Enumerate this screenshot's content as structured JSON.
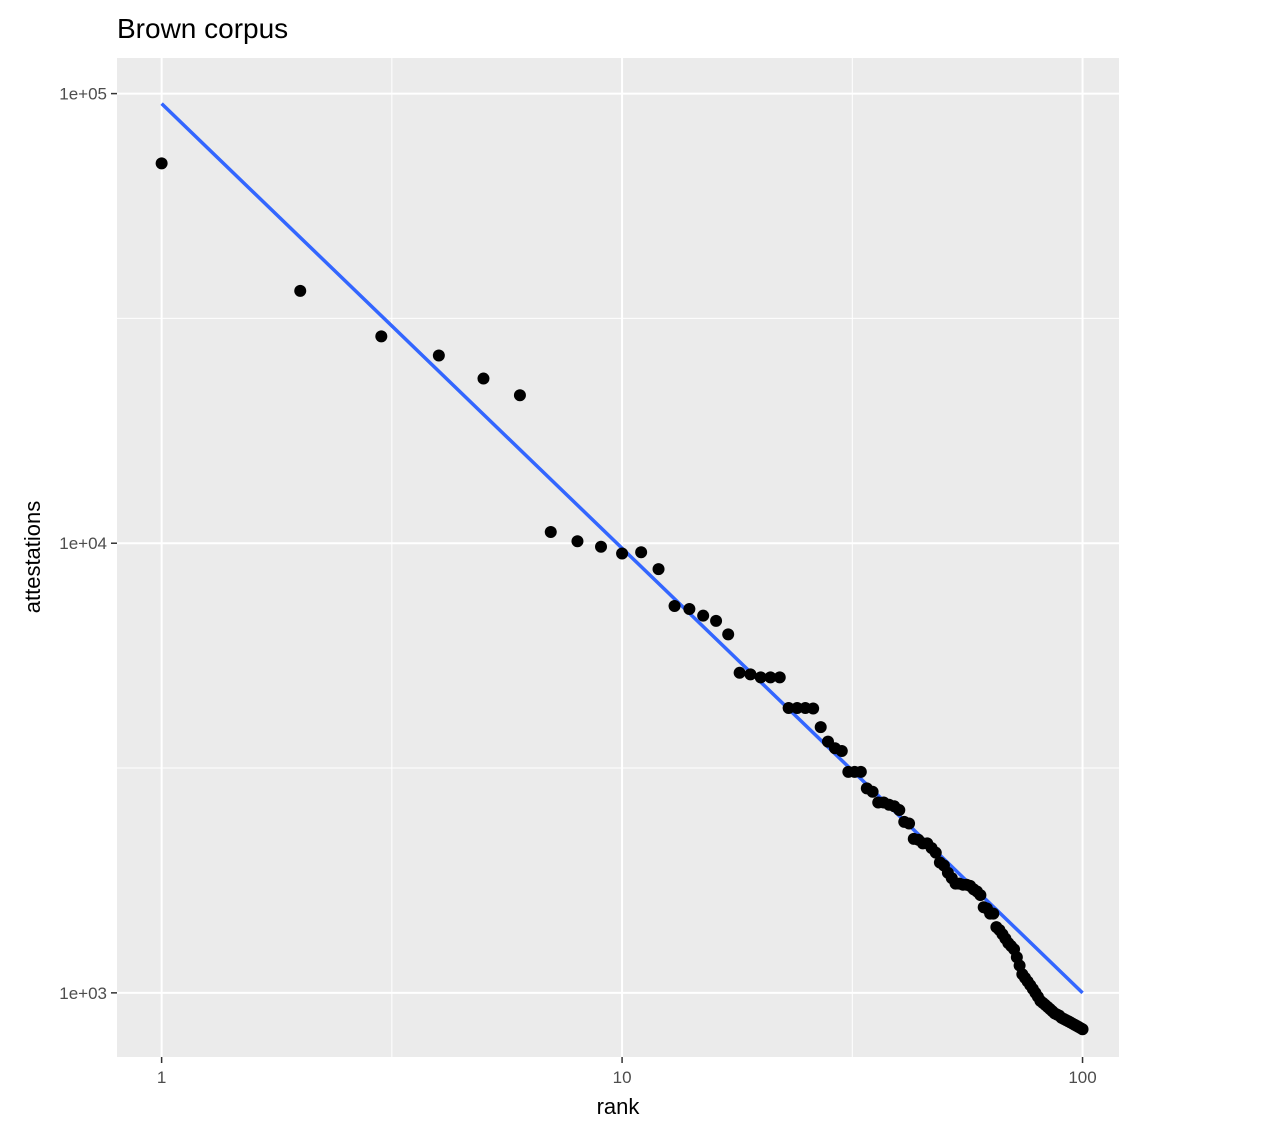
{
  "chart_data": {
    "type": "scatter",
    "title": "Brown corpus",
    "xlabel": "rank",
    "ylabel": "attestations",
    "x_scale": "log10",
    "y_scale": "log10",
    "xlim": [
      0.8,
      120
    ],
    "ylim": [
      720,
      120000
    ],
    "x_ticks": [
      {
        "value": 1,
        "label": "1"
      },
      {
        "value": 10,
        "label": "10"
      },
      {
        "value": 100,
        "label": "100"
      }
    ],
    "y_ticks": [
      {
        "value": 1000,
        "label": "1e+03"
      },
      {
        "value": 10000,
        "label": "1e+04"
      },
      {
        "value": 100000,
        "label": "1e+05"
      }
    ],
    "x_minor_gridlines": [
      3.162,
      31.62
    ],
    "y_minor_gridlines": [
      3162,
      31620
    ],
    "grid": true,
    "legend": "none",
    "colors": {
      "panel_background": "#ebebeb",
      "gridline": "#ffffff",
      "points": "#000000",
      "fit_line": "#3366ff"
    },
    "series": [
      {
        "kind": "points",
        "x": [
          1,
          2,
          3,
          4,
          5,
          6,
          7,
          8,
          9,
          10,
          11,
          12,
          13,
          14,
          15,
          16,
          17,
          18,
          19,
          20,
          21,
          22,
          23,
          24,
          25,
          26,
          27,
          28,
          29,
          30,
          31,
          32,
          33,
          34,
          35,
          36,
          37,
          38,
          39,
          40,
          41,
          42,
          43,
          44,
          45,
          46,
          47,
          48,
          49,
          50,
          51,
          52,
          53,
          54,
          55,
          56,
          57,
          58,
          59,
          60,
          61,
          62,
          63,
          64,
          65,
          66,
          67,
          68,
          69,
          70,
          71,
          72,
          73,
          74,
          75,
          76,
          77,
          78,
          79,
          80,
          81,
          82,
          83,
          84,
          85,
          86,
          87,
          88,
          89,
          90,
          91,
          92,
          93,
          94,
          95,
          96,
          97,
          98,
          99,
          100
        ],
        "y": [
          69970,
          36410,
          28850,
          26150,
          23240,
          21340,
          10590,
          10100,
          9820,
          9490,
          9550,
          8760,
          7250,
          7140,
          6900,
          6720,
          6270,
          5150,
          5110,
          5030,
          5030,
          5030,
          4300,
          4300,
          4300,
          4290,
          3900,
          3620,
          3500,
          3450,
          3100,
          3100,
          3100,
          2850,
          2800,
          2650,
          2650,
          2620,
          2600,
          2550,
          2400,
          2380,
          2200,
          2190,
          2150,
          2150,
          2100,
          2050,
          1950,
          1920,
          1850,
          1800,
          1750,
          1750,
          1740,
          1740,
          1730,
          1700,
          1680,
          1650,
          1550,
          1540,
          1500,
          1500,
          1400,
          1380,
          1350,
          1320,
          1290,
          1270,
          1250,
          1200,
          1150,
          1100,
          1080,
          1060,
          1040,
          1020,
          1000,
          980,
          960,
          950,
          940,
          930,
          920,
          910,
          900,
          895,
          890,
          880,
          875,
          870,
          865,
          860,
          855,
          850,
          845,
          840,
          835,
          830
        ]
      },
      {
        "kind": "fit-line",
        "x": [
          1,
          100
        ],
        "y": [
          95000,
          1000
        ]
      }
    ]
  }
}
